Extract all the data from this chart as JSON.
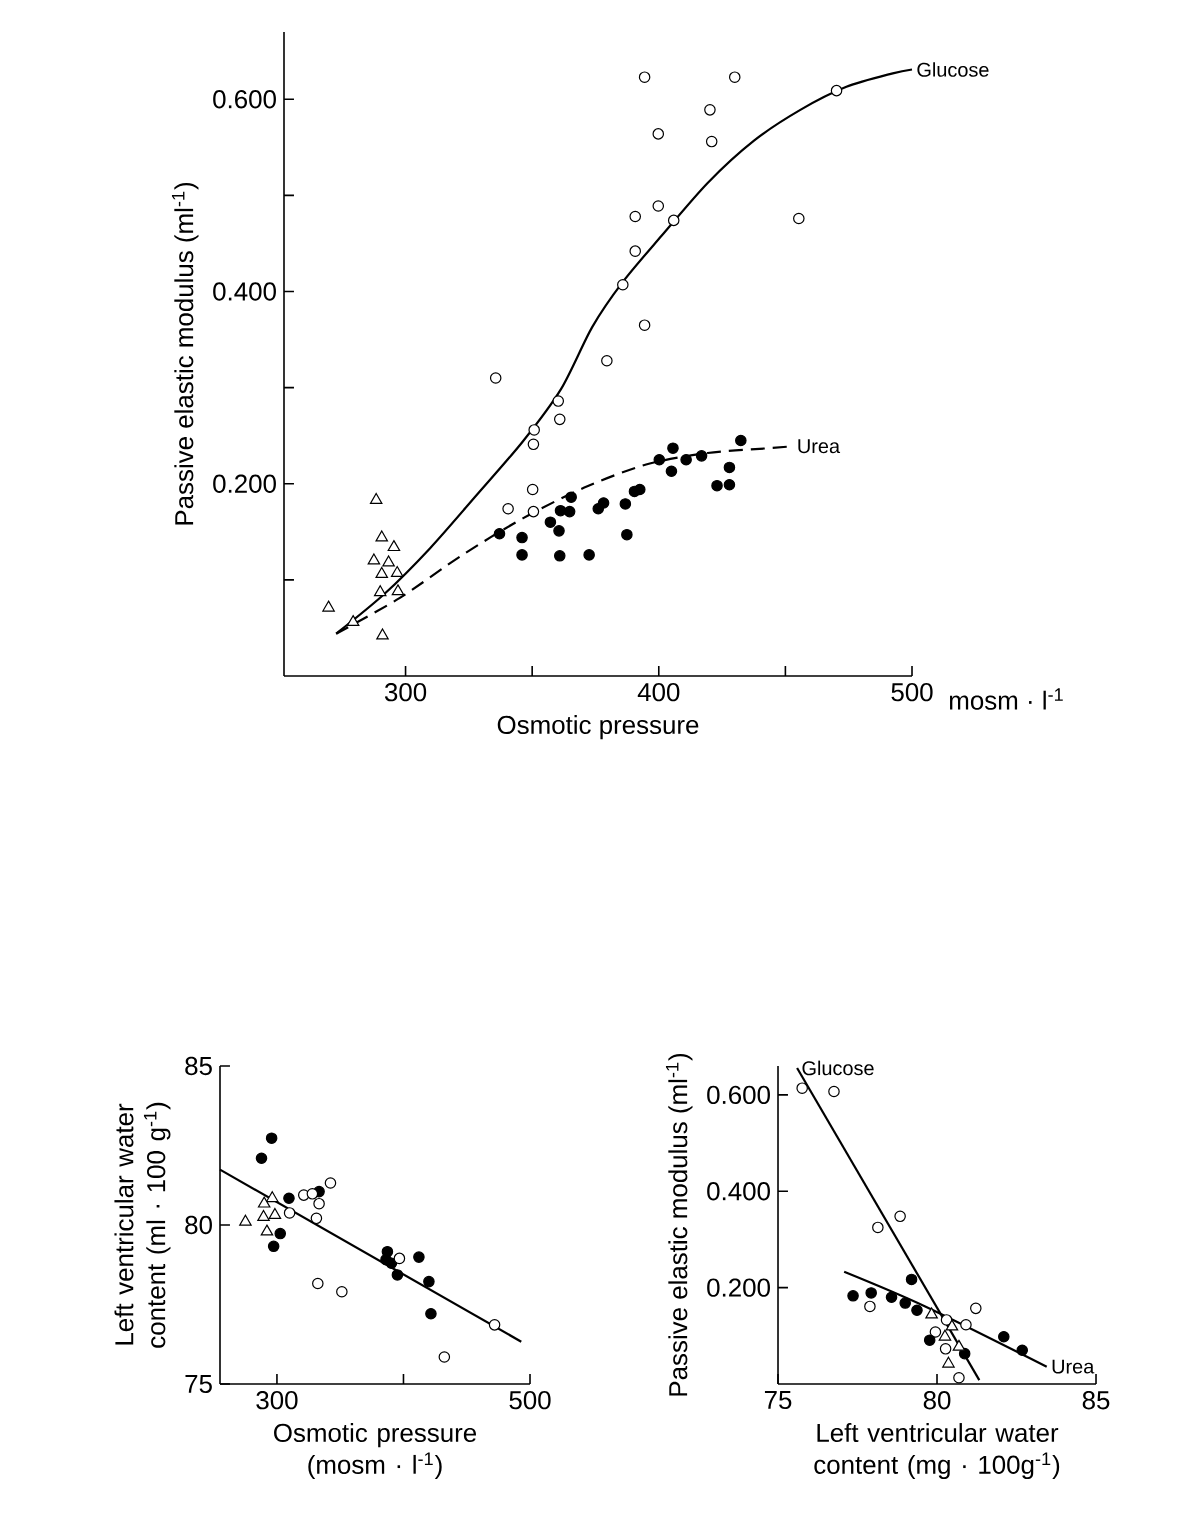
{
  "chart_data": [
    {
      "type": "scatter",
      "xlabel": "Osmotic pressure",
      "ylabel": "Passive elastic modulus  (ml$^{-1}$)",
      "xlim": [
        252,
        500
      ],
      "ylim": [
        0,
        0.67
      ],
      "xticks": [
        300,
        {
          "value": 350,
          "label": null
        },
        400,
        {
          "value": 450,
          "label": null
        },
        500
      ],
      "yticks": [
        {
          "value": 0.1,
          "label": null
        },
        {
          "value": 0.2,
          "label": "0.200"
        },
        {
          "value": 0.3,
          "label": null
        },
        {
          "value": 0.4,
          "label": "0.400"
        },
        {
          "value": 0.5,
          "label": null
        },
        {
          "value": 0.6,
          "label": "0.600"
        }
      ],
      "annotations": [
        "mosm · l$^{-1}$"
      ],
      "series": [
        {
          "marker": "circle",
          "color": "#ffffff",
          "x": [
            394.4,
            430.0,
            420.2,
            399.8,
            420.9,
            390.7,
            399.8,
            405.9,
            455.3,
            390.7,
            385.8,
            394.4,
            379.5,
            335.6,
            360.3,
            350.8,
            360.9,
            350.5,
            350.2,
            340.5,
            350.5,
            470.2
          ],
          "values": [
            0.623,
            0.623,
            0.589,
            0.564,
            0.556,
            0.478,
            0.489,
            0.474,
            0.476,
            0.442,
            0.407,
            0.365,
            0.328,
            0.31,
            0.286,
            0.256,
            0.267,
            0.241,
            0.194,
            0.174,
            0.171,
            0.609
          ]
        },
        {
          "marker": "circle",
          "color": "#000000",
          "x": [
            337.1,
            346.0,
            346.0,
            360.9,
            372.5,
            357.2,
            360.6,
            361.2,
            365.4,
            364.8,
            376.1,
            378.2,
            387.4,
            386.8,
            390.4,
            392.5,
            400.2,
            405.6,
            405.0,
            410.8,
            416.9,
            427.9,
            423.0,
            427.9,
            432.4
          ],
          "values": [
            0.148,
            0.144,
            0.126,
            0.125,
            0.126,
            0.16,
            0.151,
            0.172,
            0.186,
            0.171,
            0.174,
            0.18,
            0.147,
            0.179,
            0.192,
            0.194,
            0.225,
            0.237,
            0.213,
            0.225,
            0.229,
            0.217,
            0.198,
            0.199,
            0.245
          ]
        },
        {
          "marker": "triangle",
          "color": "#ffffff",
          "x": [
            288.4,
            290.6,
            295.4,
            287.5,
            293.3,
            290.6,
            296.7,
            290.0,
            297.0,
            269.6,
            279.3,
            290.9
          ],
          "values": [
            0.183,
            0.144,
            0.134,
            0.12,
            0.118,
            0.106,
            0.107,
            0.087,
            0.088,
            0.071,
            0.056,
            0.042
          ]
        },
        {
          "type": "line",
          "name": "Glucose",
          "line_style": "solid",
          "color": "#000000",
          "x": [
            272.6,
            291.5,
            309.7,
            328.0,
            346.3,
            361.5,
            373.7,
            385.8,
            401.1,
            419.3,
            437.6,
            455.9,
            474.1,
            492.4,
            500
          ],
          "values": [
            0.044,
            0.085,
            0.133,
            0.188,
            0.244,
            0.299,
            0.363,
            0.41,
            0.458,
            0.513,
            0.557,
            0.589,
            0.613,
            0.627,
            0.631
          ]
        },
        {
          "type": "line",
          "name": "Urea",
          "line_style": "dashed",
          "color": "#000000",
          "x": [
            272.6,
            297.6,
            321.9,
            346.3,
            370.6,
            395.0,
            419.3,
            443.7,
            452.8
          ],
          "values": [
            0.044,
            0.081,
            0.125,
            0.164,
            0.196,
            0.22,
            0.232,
            0.237,
            0.239
          ]
        }
      ]
    },
    {
      "type": "scatter",
      "xlabel": "Osmotic pressure (mosm · l$^{-1}$)",
      "ylabel": "Left ventricular water content (ml · 100 g$^{-1}$)",
      "xlim": [
        255,
        500
      ],
      "ylim": [
        75,
        85
      ],
      "xticks": [
        300,
        {
          "value": 400,
          "label": null
        },
        500
      ],
      "yticks": [
        75,
        80,
        85
      ],
      "series": [
        {
          "marker": "circle",
          "color": "#000000",
          "x": [
            287.8,
            295.8,
            309.5,
            302.6,
            297.4,
            333.3,
            387.3,
            386.2,
            395.2,
            412.2,
            420.1,
            421.7,
            390.5
          ],
          "values": [
            82.1,
            82.73,
            80.84,
            79.73,
            79.33,
            81.05,
            79.16,
            78.91,
            78.43,
            78.99,
            78.22,
            77.21,
            78.8
          ]
        },
        {
          "marker": "circle",
          "color": "#ffffff",
          "x": [
            310.0,
            321.2,
            328.0,
            342.3,
            331.2,
            332.3,
            351.3,
            396.8,
            472.0,
            432.3,
            333.3
          ],
          "values": [
            80.38,
            80.94,
            80.98,
            81.32,
            80.21,
            78.16,
            77.9,
            78.95,
            76.86,
            75.85,
            80.67
          ]
        },
        {
          "marker": "triangle",
          "color": "#ffffff",
          "x": [
            275.1,
            289.4,
            296.3,
            292.1,
            298.4,
            289.9
          ],
          "values": [
            80.1,
            80.25,
            80.84,
            79.79,
            80.31,
            80.67
          ]
        },
        {
          "type": "line",
          "line_style": "solid",
          "color": "#000000",
          "x": [
            255,
            493.1
          ],
          "values": [
            81.74,
            76.33
          ]
        }
      ]
    },
    {
      "type": "scatter",
      "xlabel": "Left ventricular water content (mg · 100g$^{-1}$)",
      "ylabel": "Passive elastic modulus (ml$^{-1}$)",
      "xlim": [
        75,
        85
      ],
      "ylim": [
        0,
        0.66
      ],
      "xticks": [
        75,
        80,
        85
      ],
      "yticks": [
        {
          "value": 0.2,
          "label": "0.200"
        },
        {
          "value": 0.4,
          "label": "0.400"
        },
        {
          "value": 0.6,
          "label": "0.600"
        }
      ],
      "series": [
        {
          "marker": "circle",
          "color": "#ffffff",
          "x": [
            75.76,
            76.76,
            78.14,
            78.84,
            77.89,
            79.95,
            80.27,
            80.91,
            81.22,
            80.69,
            80.3
          ],
          "values": [
            0.614,
            0.607,
            0.325,
            0.348,
            0.161,
            0.108,
            0.073,
            0.123,
            0.157,
            0.013,
            0.133
          ]
        },
        {
          "marker": "circle",
          "color": "#000000",
          "x": [
            77.36,
            79.2,
            79.37,
            79.77,
            80.87,
            82.1,
            82.68,
            77.93,
            78.57,
            79.0
          ],
          "values": [
            0.183,
            0.217,
            0.153,
            0.091,
            0.063,
            0.098,
            0.07,
            0.189,
            0.18,
            0.168
          ]
        },
        {
          "marker": "triangle",
          "color": "#ffffff",
          "x": [
            79.83,
            80.25,
            80.69,
            80.36,
            80.47
          ],
          "values": [
            0.144,
            0.098,
            0.077,
            0.042,
            0.119
          ]
        },
        {
          "type": "line",
          "name": "Glucose",
          "line_style": "solid",
          "color": "#000000",
          "x": [
            81.33,
            75.6
          ],
          "values": [
            0.008,
            0.656
          ]
        },
        {
          "type": "line",
          "name": "Urea",
          "line_style": "solid",
          "color": "#000000",
          "x": [
            77.08,
            79.63,
            83.45
          ],
          "values": [
            0.233,
            0.161,
            0.036
          ]
        }
      ]
    }
  ]
}
